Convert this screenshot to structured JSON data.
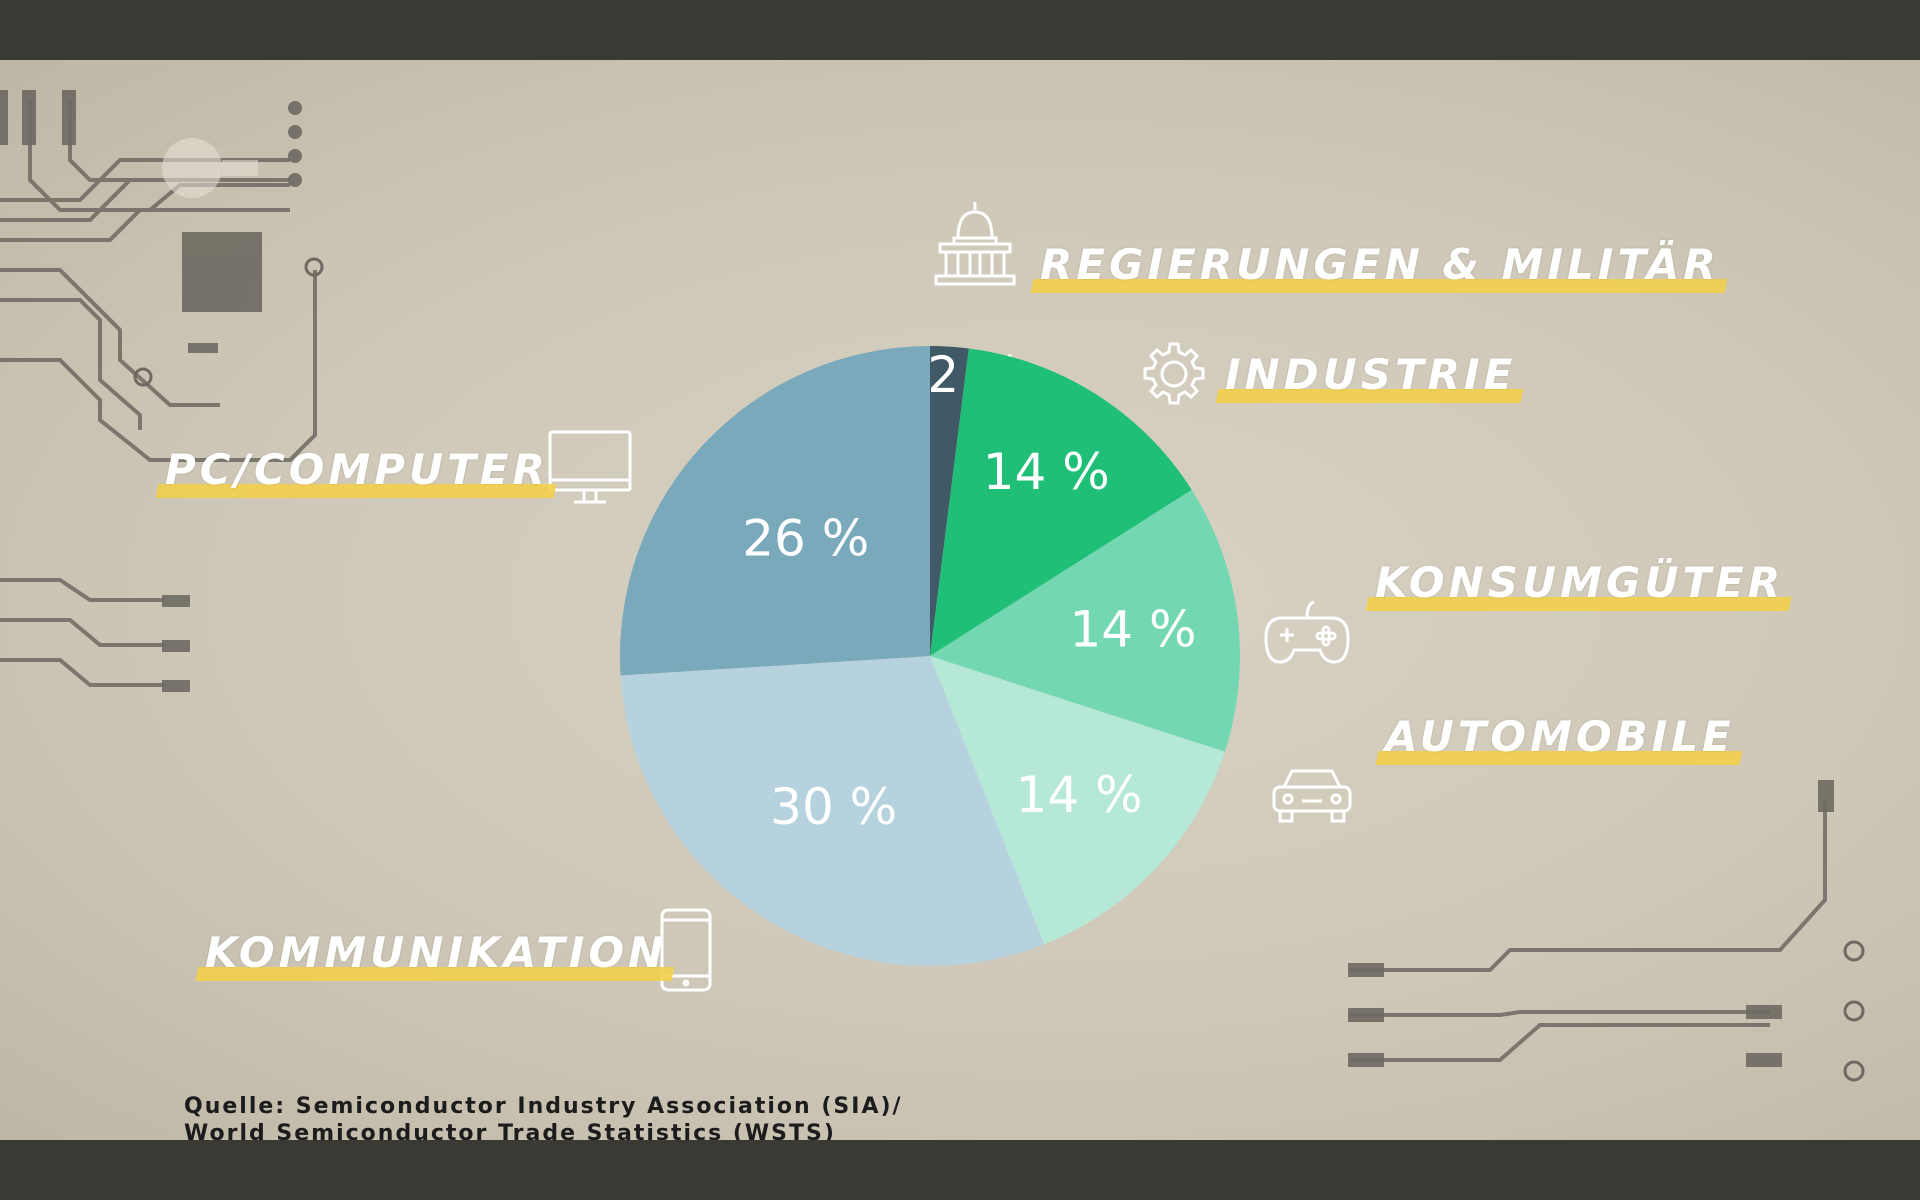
{
  "chart_data": {
    "type": "pie",
    "title": "",
    "start_angle_deg": 0,
    "slices": [
      {
        "label": "REGIERUNGEN & MILITÄR",
        "value": 2,
        "display": "2 %",
        "color": "#3f5a66",
        "icon": "capitol-building-icon"
      },
      {
        "label": "INDUSTRIE",
        "value": 14,
        "display": "14 %",
        "color": "#1fbf78",
        "icon": "gear-icon"
      },
      {
        "label": "KONSUMGÜTER",
        "value": 14,
        "display": "14 %",
        "color": "#73d8b2",
        "icon": "gamepad-icon"
      },
      {
        "label": "AUTOMOBILE",
        "value": 14,
        "display": "14 %",
        "color": "#b5e8d6",
        "icon": "car-icon"
      },
      {
        "label": "KOMMUNIKATION",
        "value": 30,
        "display": "30 %",
        "color": "#b5d2de",
        "icon": "smartphone-icon"
      },
      {
        "label": "PC/COMPUTER",
        "value": 26,
        "display": "26 %",
        "color": "#79a9bb",
        "icon": "monitor-icon"
      }
    ],
    "legend_placement": "labels-around-pie"
  },
  "source": {
    "line1": "Quelle: Semiconductor Industry Association (SIA)/",
    "line2": "World Semiconductor Trade Statistics (WSTS)"
  },
  "colors": {
    "background": "#d2cbbb",
    "highlight": "#f2cf4a",
    "label_text": "#ffffff",
    "circuit": "#6e6a62"
  }
}
